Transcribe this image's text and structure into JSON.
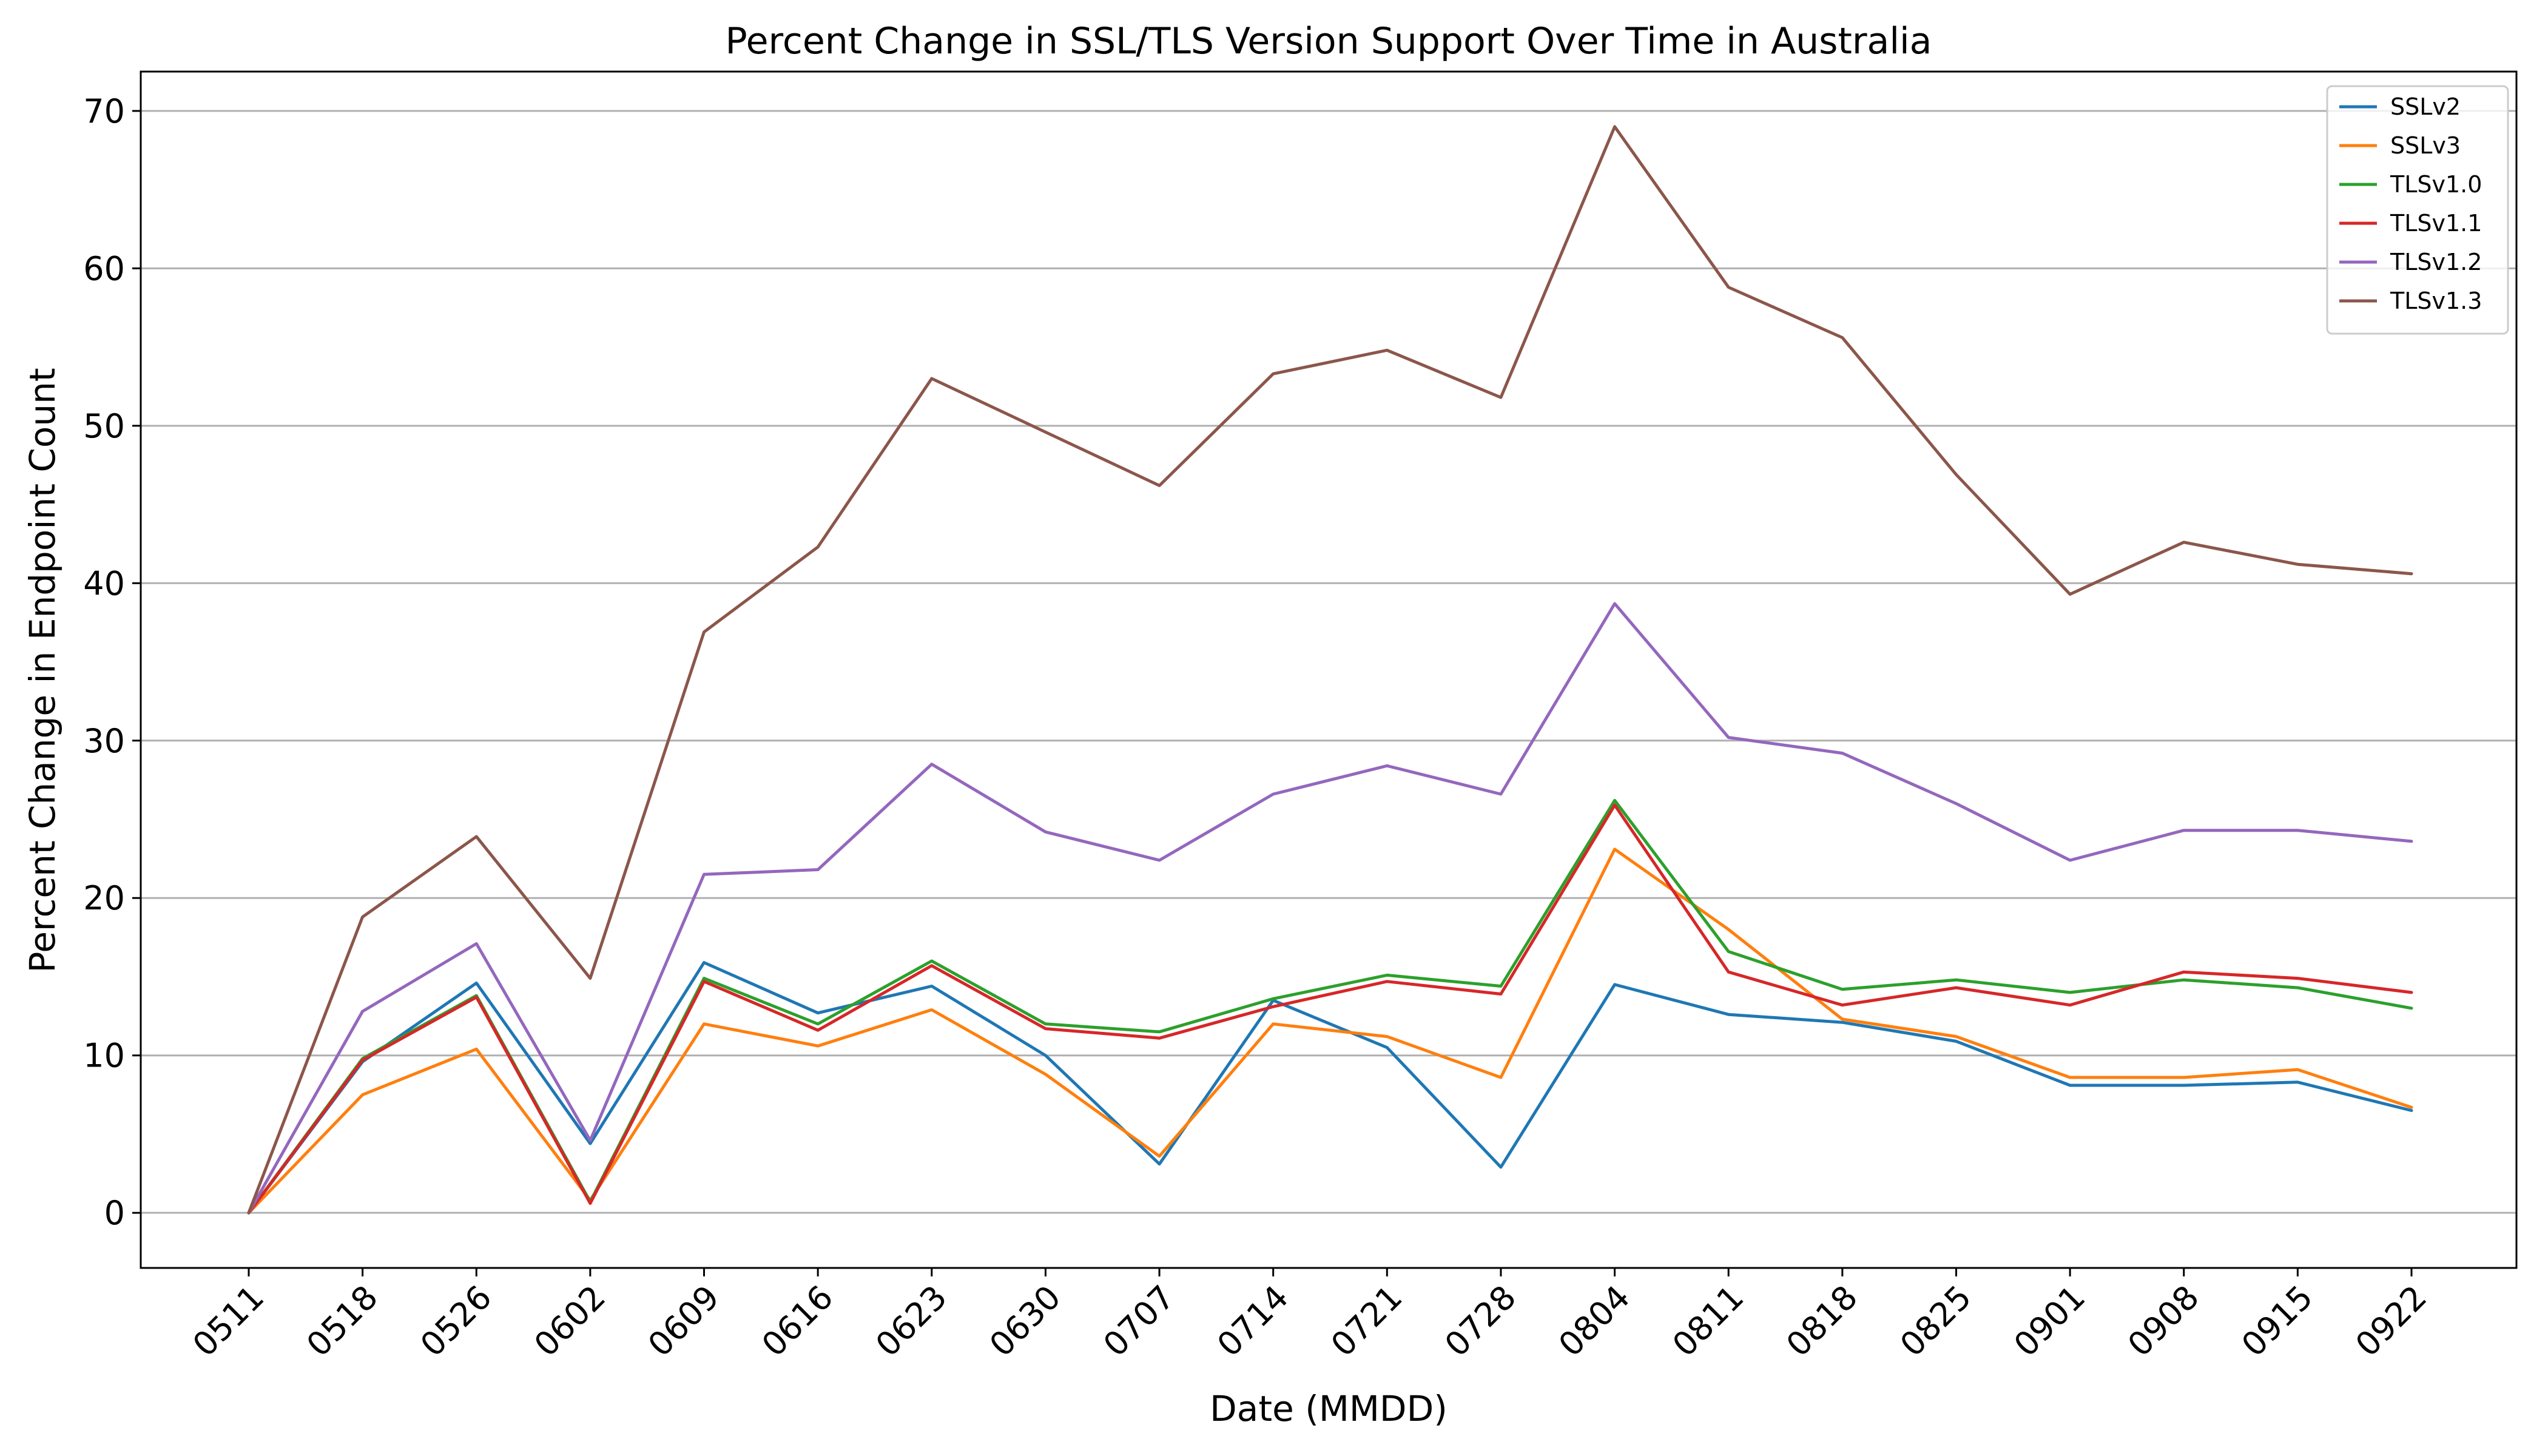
{
  "chart_data": {
    "type": "line",
    "title": "Percent Change in SSL/TLS Version Support Over Time in Australia",
    "xlabel": "Date (MMDD)",
    "ylabel": "Percent Change in Endpoint Count",
    "categories": [
      "0511",
      "0518",
      "0526",
      "0602",
      "0609",
      "0616",
      "0623",
      "0630",
      "0707",
      "0714",
      "0721",
      "0728",
      "0804",
      "0811",
      "0818",
      "0825",
      "0901",
      "0908",
      "0915",
      "0922"
    ],
    "yticks": [
      0,
      10,
      20,
      30,
      40,
      50,
      60,
      70
    ],
    "ylim": [
      -3.5,
      72.5
    ],
    "grid": "horizontal",
    "legend_position": "top-right",
    "series": [
      {
        "name": "SSLv2",
        "color": "#1f77b4",
        "values": [
          0,
          9.6,
          14.6,
          4.4,
          15.9,
          12.7,
          14.4,
          10.0,
          3.1,
          13.5,
          10.5,
          2.9,
          14.5,
          12.6,
          12.1,
          10.9,
          8.1,
          8.1,
          8.3,
          6.5
        ]
      },
      {
        "name": "SSLv3",
        "color": "#ff7f0e",
        "values": [
          0,
          7.5,
          10.4,
          0.8,
          12.0,
          10.6,
          12.9,
          8.8,
          3.6,
          12.0,
          11.2,
          8.6,
          23.1,
          18.0,
          12.3,
          11.2,
          8.6,
          8.6,
          9.1,
          6.7
        ]
      },
      {
        "name": "TLSv1.0",
        "color": "#2ca02c",
        "values": [
          0,
          9.8,
          13.8,
          0.7,
          14.9,
          12.0,
          16.0,
          12.0,
          11.5,
          13.6,
          15.1,
          14.4,
          26.2,
          16.6,
          14.2,
          14.8,
          14.0,
          14.8,
          14.3,
          13.0
        ]
      },
      {
        "name": "TLSv1.1",
        "color": "#d62728",
        "values": [
          0,
          9.7,
          13.7,
          0.6,
          14.7,
          11.6,
          15.7,
          11.7,
          11.1,
          13.1,
          14.7,
          13.9,
          25.9,
          15.3,
          13.2,
          14.3,
          13.2,
          15.3,
          14.9,
          14.0
        ]
      },
      {
        "name": "TLSv1.2",
        "color": "#9467bd",
        "values": [
          0,
          12.8,
          17.1,
          4.6,
          21.5,
          21.8,
          28.5,
          24.2,
          22.4,
          26.6,
          28.4,
          26.6,
          38.7,
          30.2,
          29.2,
          26.0,
          22.4,
          24.3,
          24.3,
          23.6
        ]
      },
      {
        "name": "TLSv1.3",
        "color": "#8c564b",
        "values": [
          0,
          18.8,
          23.9,
          14.9,
          36.9,
          42.3,
          53.0,
          49.6,
          46.2,
          53.3,
          54.8,
          51.8,
          69.0,
          58.8,
          55.6,
          46.9,
          39.3,
          42.6,
          41.2,
          40.6
        ]
      }
    ]
  }
}
